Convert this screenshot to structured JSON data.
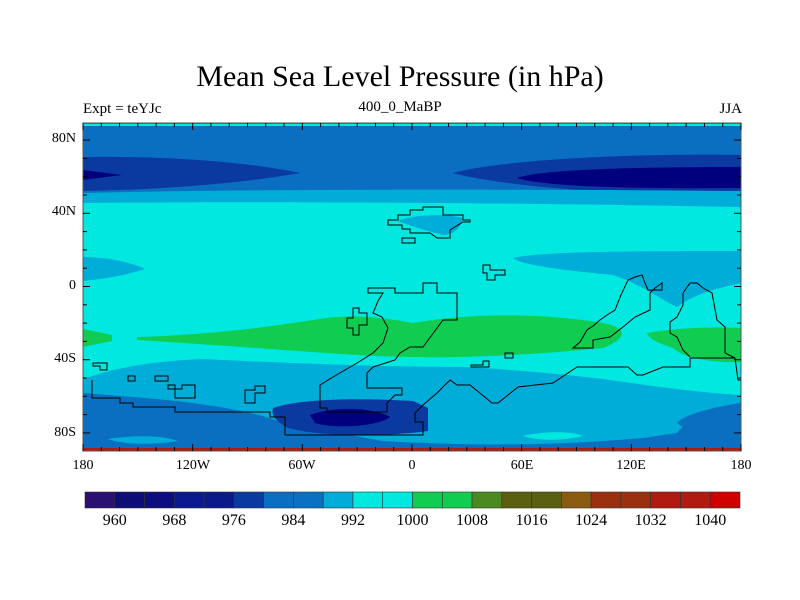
{
  "title": "Mean Sea Level Pressure (in hPa)",
  "left_subtitle": "Expt = teYJc",
  "center_subtitle": "400_0_MaBP",
  "right_subtitle": "JJA",
  "lat_labels": [
    "80N",
    "40N",
    "0",
    "40S",
    "80S"
  ],
  "lon_labels": [
    "180",
    "120W",
    "60W",
    "0",
    "60E",
    "120E",
    "180"
  ],
  "colorbar": {
    "levels": [
      960,
      964,
      968,
      972,
      976,
      980,
      984,
      988,
      992,
      996,
      1000,
      1004,
      1008,
      1012,
      1016,
      1020,
      1024,
      1028,
      1032,
      1036,
      1040
    ],
    "labels": [
      "960",
      "968",
      "976",
      "984",
      "992",
      "1000",
      "1008",
      "1016",
      "1024",
      "1032",
      "1040"
    ],
    "colors": [
      "#2a1070",
      "#0d0d78",
      "#0d0d80",
      "#0a1a8e",
      "#0a1a8a",
      "#0a3aa0",
      "#0a6fc0",
      "#0a70c2",
      "#00acd8",
      "#00e8e0",
      "#00e8e0",
      "#10cc50",
      "#10cc50",
      "#4a8a20",
      "#5a6010",
      "#5a6010",
      "#8a5a10",
      "#9a3010",
      "#9a3010",
      "#b01a10",
      "#b01a10",
      "#d00000"
    ]
  },
  "map_colors": {
    "base": "#0a6fc0",
    "light": "#00acd8",
    "cyan": "#00e8e0",
    "green": "#10cc50",
    "dark": "#0a3aa0",
    "navy": "#00007f",
    "coast": "#000000"
  }
}
